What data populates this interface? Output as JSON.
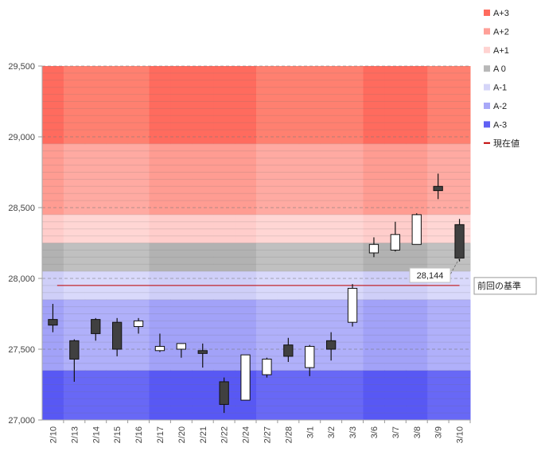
{
  "chart_data": {
    "type": "candlestick",
    "title": "",
    "xlabel": "",
    "ylabel": "",
    "ylim": [
      27000,
      29500
    ],
    "yticks": [
      27000,
      27500,
      28000,
      28500,
      29000,
      29500
    ],
    "ytick_labels": [
      "27,000",
      "27,500",
      "28,000",
      "28,500",
      "29,000",
      "29,500"
    ],
    "categories": [
      "2/10",
      "2/13",
      "2/14",
      "2/15",
      "2/16",
      "2/17",
      "2/20",
      "2/21",
      "2/22",
      "2/24",
      "2/27",
      "2/28",
      "3/1",
      "3/2",
      "3/3",
      "3/6",
      "3/7",
      "3/8",
      "3/9",
      "3/10"
    ],
    "candles": [
      {
        "open": 27710,
        "high": 27820,
        "low": 27620,
        "close": 27670
      },
      {
        "open": 27560,
        "high": 27570,
        "low": 27270,
        "close": 27430
      },
      {
        "open": 27710,
        "high": 27720,
        "low": 27560,
        "close": 27610
      },
      {
        "open": 27690,
        "high": 27720,
        "low": 27450,
        "close": 27500
      },
      {
        "open": 27660,
        "high": 27720,
        "low": 27610,
        "close": 27700
      },
      {
        "open": 27490,
        "high": 27610,
        "low": 27480,
        "close": 27520
      },
      {
        "open": 27500,
        "high": 27540,
        "low": 27440,
        "close": 27540
      },
      {
        "open": 27490,
        "high": 27540,
        "low": 27370,
        "close": 27470
      },
      {
        "open": 27270,
        "high": 27300,
        "low": 27050,
        "close": 27110
      },
      {
        "open": 27140,
        "high": 27460,
        "low": 27140,
        "close": 27460
      },
      {
        "open": 27320,
        "high": 27440,
        "low": 27300,
        "close": 27430
      },
      {
        "open": 27530,
        "high": 27580,
        "low": 27410,
        "close": 27450
      },
      {
        "open": 27370,
        "high": 27530,
        "low": 27310,
        "close": 27520
      },
      {
        "open": 27560,
        "high": 27620,
        "low": 27420,
        "close": 27500
      },
      {
        "open": 27690,
        "high": 27960,
        "low": 27660,
        "close": 27930
      },
      {
        "open": 28180,
        "high": 28290,
        "low": 28150,
        "close": 28240
      },
      {
        "open": 28200,
        "high": 28400,
        "low": 28190,
        "close": 28310
      },
      {
        "open": 28240,
        "high": 28460,
        "low": 28240,
        "close": 28450
      },
      {
        "open": 28650,
        "high": 28740,
        "low": 28560,
        "close": 28620
      },
      {
        "open": 28380,
        "high": 28420,
        "low": 28120,
        "close": 28144
      }
    ],
    "zones": [
      {
        "name": "A+3",
        "from": 28950,
        "to": 29500,
        "color": "#ff6b5e",
        "color_alt": "#ff8070"
      },
      {
        "name": "A+2",
        "from": 28450,
        "to": 28950,
        "color": "#ff9c92",
        "color_alt": "#ffaaa2"
      },
      {
        "name": "A+1",
        "from": 28250,
        "to": 28450,
        "color": "#ffcdcb",
        "color_alt": "#ffd6d4"
      },
      {
        "name": "A 0",
        "from": 28050,
        "to": 28250,
        "color": "#b2b2b2",
        "color_alt": "#c0c0c0"
      },
      {
        "name": "A-1",
        "from": 27850,
        "to": 28050,
        "color": "#cfcff8",
        "color_alt": "#d9d9fb"
      },
      {
        "name": "A-2",
        "from": 27350,
        "to": 27850,
        "color": "#a2a2f8",
        "color_alt": "#b0b0fa"
      },
      {
        "name": "A-3",
        "from": 27000,
        "to": 27350,
        "color": "#5858f4",
        "color_alt": "#6868f6"
      }
    ],
    "shade_columns": [
      0,
      5,
      6,
      7,
      8,
      9,
      15,
      16,
      17
    ],
    "legend": [
      {
        "label": "A+3",
        "color": "#ff6b5e",
        "kind": "box"
      },
      {
        "label": "A+2",
        "color": "#ffa098",
        "kind": "box"
      },
      {
        "label": "A+1",
        "color": "#ffd3d1",
        "kind": "box"
      },
      {
        "label": "A 0",
        "color": "#b8b8b8",
        "kind": "box"
      },
      {
        "label": "A-1",
        "color": "#d5d5f8",
        "kind": "box"
      },
      {
        "label": "A-2",
        "color": "#a8a8f8",
        "kind": "box"
      },
      {
        "label": "A-3",
        "color": "#6060f4",
        "kind": "box"
      },
      {
        "label": "現在値",
        "color": "#c00000",
        "kind": "line"
      }
    ],
    "reference_line": {
      "value": 27950,
      "label": "前回の基準",
      "color": "#c00000"
    },
    "current_value": {
      "value": 28144,
      "label": "28,144"
    },
    "legend_position": "right"
  }
}
